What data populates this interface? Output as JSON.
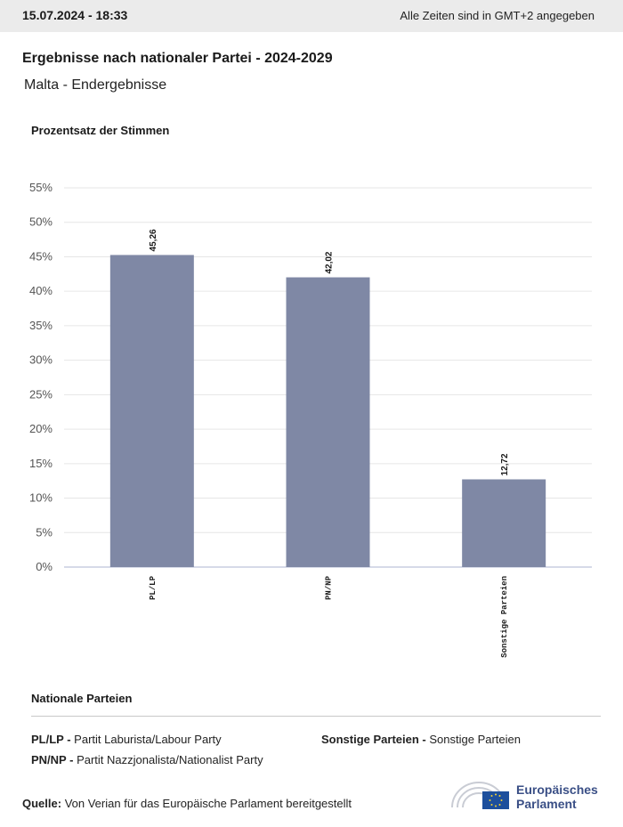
{
  "header": {
    "date": "15.07.2024 - 18:33",
    "timezone_note": "Alle Zeiten sind in GMT+2 angegeben"
  },
  "title": "Ergebnisse nach nationaler Partei - 2024-2029",
  "subtitle": "Malta - Endergebnisse",
  "chart_heading": "Prozentsatz der Stimmen",
  "chart_data": {
    "type": "bar",
    "categories": [
      "PL/LP",
      "PN/NP",
      "Sonstige Parteien"
    ],
    "values": [
      45.26,
      42.02,
      12.72
    ],
    "value_labels": [
      "45,26",
      "42,02",
      "12,72"
    ],
    "yticks": [
      "0%",
      "5%",
      "10%",
      "15%",
      "20%",
      "25%",
      "30%",
      "35%",
      "40%",
      "45%",
      "50%",
      "55%"
    ],
    "ylim": [
      0,
      55
    ],
    "grid": true,
    "bar_color": "#7f88a5"
  },
  "legend": {
    "title": "Nationale Parteien",
    "items": [
      {
        "code": "PL/LP -",
        "name": "Partit Laburista/Labour Party"
      },
      {
        "code": "Sonstige Parteien -",
        "name": "Sonstige Parteien"
      },
      {
        "code": "PN/NP -",
        "name": "Partit Nazzjonalista/Nationalist Party"
      }
    ]
  },
  "source": {
    "label": "Quelle:",
    "text": "Von Verian für das Europäische Parlament bereitgestellt"
  },
  "logo": {
    "line1": "Europäisches",
    "line2": "Parlament",
    "color": "#3a4f86"
  }
}
